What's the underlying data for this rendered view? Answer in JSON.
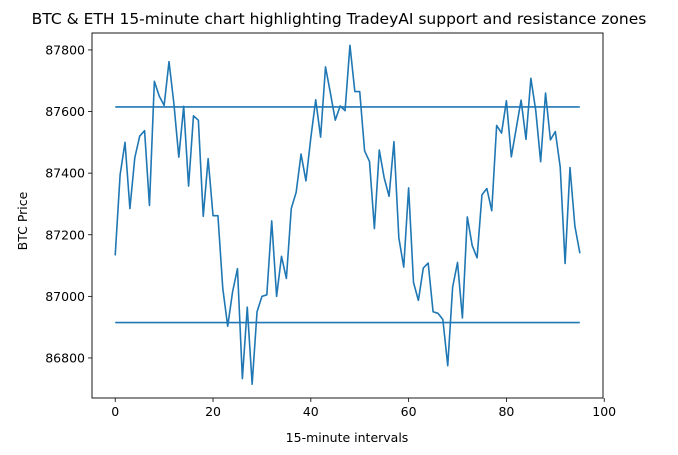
{
  "chart_data": {
    "type": "line",
    "title": "BTC & ETH 15-minute chart highlighting TradeyAI support and resistance zones",
    "xlabel": "15-minute intervals",
    "ylabel": "BTC Price",
    "xlim": [
      -4.75,
      99.75
    ],
    "ylim": [
      86670,
      87855
    ],
    "xticks": [
      0,
      20,
      40,
      60,
      80,
      100
    ],
    "yticks": [
      86800,
      87000,
      87200,
      87400,
      87600,
      87800
    ],
    "grid": false,
    "color": "#1f77b4",
    "series": [
      {
        "values": [
          87135,
          87395,
          87500,
          87285,
          87450,
          87520,
          87538,
          87295,
          87698,
          87650,
          87620,
          87762,
          87625,
          87452,
          87617,
          87358,
          87586,
          87572,
          87260,
          87447,
          87262,
          87262,
          87025,
          86903,
          87015,
          87090,
          86733,
          86965,
          86715,
          86950,
          87000,
          87005,
          87245,
          87000,
          87130,
          87058,
          87285,
          87338,
          87462,
          87375,
          87515,
          87638,
          87517,
          87745,
          87660,
          87572,
          87618,
          87603,
          87815,
          87665,
          87665,
          87472,
          87438,
          87220,
          87475,
          87385,
          87325,
          87502,
          87190,
          87095,
          87352,
          87045,
          86987,
          87092,
          87108,
          86950,
          86945,
          86925,
          86775,
          87030,
          87110,
          86930,
          87258,
          87165,
          87125,
          87330,
          87350,
          87278,
          87555,
          87530,
          87635,
          87453,
          87545,
          87637,
          87510,
          87708,
          87603,
          87437,
          87660,
          87508,
          87535,
          87420,
          87107,
          87418,
          87228,
          87142
        ]
      }
    ],
    "hlines": [
      {
        "y": 87615,
        "xmin": 0,
        "xmax": 95
      },
      {
        "y": 86915,
        "xmin": 0,
        "xmax": 95
      }
    ]
  }
}
